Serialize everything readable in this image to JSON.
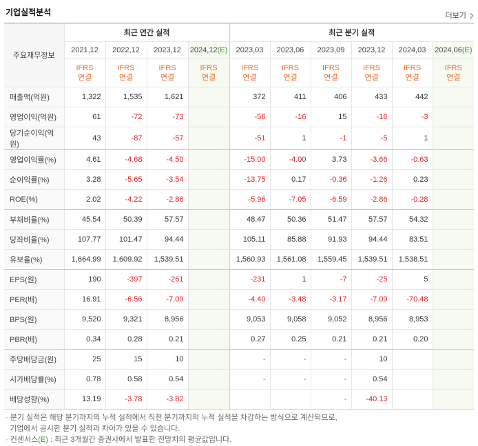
{
  "header": {
    "title": "기업실적분석",
    "more": "더보기"
  },
  "table": {
    "corner": "주요재무정보",
    "groups": [
      {
        "label": "최근 연간 실적",
        "span": 4
      },
      {
        "label": "최근 분기 실적",
        "span": 6
      }
    ],
    "columns": [
      {
        "period": "2021,12",
        "suffix": null,
        "standard": "IFRS",
        "basis": "연결"
      },
      {
        "period": "2022,12",
        "suffix": null,
        "standard": "IFRS",
        "basis": "연결"
      },
      {
        "period": "2023,12",
        "suffix": null,
        "standard": "IFRS",
        "basis": "연결"
      },
      {
        "period": "2024,12",
        "suffix": "(E)",
        "standard": "IFRS",
        "basis": "연결"
      },
      {
        "period": "2023,03",
        "suffix": null,
        "standard": "IFRS",
        "basis": "연결"
      },
      {
        "period": "2023,06",
        "suffix": null,
        "standard": "IFRS",
        "basis": "연결"
      },
      {
        "period": "2023,09",
        "suffix": null,
        "standard": "IFRS",
        "basis": "연결"
      },
      {
        "period": "2023,12",
        "suffix": null,
        "standard": "IFRS",
        "basis": "연결"
      },
      {
        "period": "2024,03",
        "suffix": null,
        "standard": "IFRS",
        "basis": "연결"
      },
      {
        "period": "2024,06",
        "suffix": "(E)",
        "standard": "IFRS",
        "basis": "연결"
      }
    ],
    "rows": [
      {
        "label": "매출액(억원)",
        "cells": [
          "1,322",
          "1,535",
          "1,621",
          null,
          "372",
          "411",
          "406",
          "433",
          "442",
          null
        ]
      },
      {
        "label": "영업이익(억원)",
        "cells": [
          "61",
          "-72",
          "-73",
          null,
          "-56",
          "-16",
          "15",
          "-16",
          "-3",
          null
        ]
      },
      {
        "label": "당기순이익(억원)",
        "cells": [
          "43",
          "-87",
          "-57",
          null,
          "-51",
          "1",
          "-1",
          "-5",
          "1",
          null
        ]
      },
      {
        "label": "영업이익률(%)",
        "cells": [
          "4.61",
          "-4.68",
          "-4.50",
          null,
          "-15.00",
          "-4.00",
          "3.73",
          "-3.66",
          "-0.63",
          null
        ]
      },
      {
        "label": "순이익률(%)",
        "cells": [
          "3.28",
          "-5.65",
          "-3.54",
          null,
          "-13.75",
          "0.17",
          "-0.36",
          "-1.26",
          "0.23",
          null
        ]
      },
      {
        "label": "ROE(%)",
        "cells": [
          "2.02",
          "-4.22",
          "-2.86",
          null,
          "-5.96",
          "-7.05",
          "-6.59",
          "-2.86",
          "-0.28",
          null
        ]
      },
      {
        "label": "부채비율(%)",
        "cells": [
          "45.54",
          "50.39",
          "57.57",
          null,
          "48.47",
          "50.36",
          "51.47",
          "57.57",
          "54.32",
          null
        ]
      },
      {
        "label": "당좌비율(%)",
        "cells": [
          "107.77",
          "101.47",
          "94.44",
          null,
          "105.11",
          "85.88",
          "91.93",
          "94.44",
          "83.51",
          null
        ]
      },
      {
        "label": "유보율(%)",
        "cells": [
          "1,664.99",
          "1,609.92",
          "1,539.51",
          null,
          "1,560.93",
          "1,561.08",
          "1,559.45",
          "1,539.51",
          "1,538.51",
          null
        ]
      },
      {
        "label": "EPS(원)",
        "cells": [
          "190",
          "-397",
          "-261",
          null,
          "-231",
          "1",
          "-7",
          "-25",
          "5",
          null
        ]
      },
      {
        "label": "PER(배)",
        "cells": [
          "16.91",
          "-6.56",
          "-7.09",
          null,
          "-4.40",
          "-3.48",
          "-3.17",
          "-7.09",
          "-70.48",
          null
        ]
      },
      {
        "label": "BPS(원)",
        "cells": [
          "9,520",
          "9,321",
          "8,956",
          null,
          "9,053",
          "9,058",
          "9,052",
          "8,956",
          "8,953",
          null
        ]
      },
      {
        "label": "PBR(배)",
        "cells": [
          "0.34",
          "0.28",
          "0.21",
          null,
          "0.27",
          "0.25",
          "0.21",
          "0.21",
          "0.20",
          null
        ]
      },
      {
        "label": "주당배당금(원)",
        "cells": [
          "25",
          "15",
          "10",
          null,
          "-",
          "-",
          "-",
          "10",
          null,
          null
        ]
      },
      {
        "label": "시가배당률(%)",
        "cells": [
          "0.78",
          "0.58",
          "0.54",
          null,
          "-",
          "-",
          "-",
          "0.54",
          null,
          null
        ]
      },
      {
        "label": "배당성향(%)",
        "cells": [
          "13.19",
          "-3.78",
          "-3.82",
          null,
          null,
          null,
          "-",
          "-40.13",
          null,
          null
        ]
      }
    ],
    "separators_after": [
      2,
      5,
      8,
      12,
      15
    ]
  },
  "notes": [
    {
      "parts": [
        "분기 실적은 해당 분기까지의 누적 실적에서 직전 분기까지의 누적 실적을 차감하는 방식으로 계산되므로,",
        "기업에서 공시한 분기 실적과 차이가 있을 수 있습니다."
      ]
    },
    {
      "parts": [
        "컨센서스",
        "(E)",
        " : 최근 3개월간 증권사에서 발표한 전망치의 평균값입니다."
      ]
    }
  ]
}
